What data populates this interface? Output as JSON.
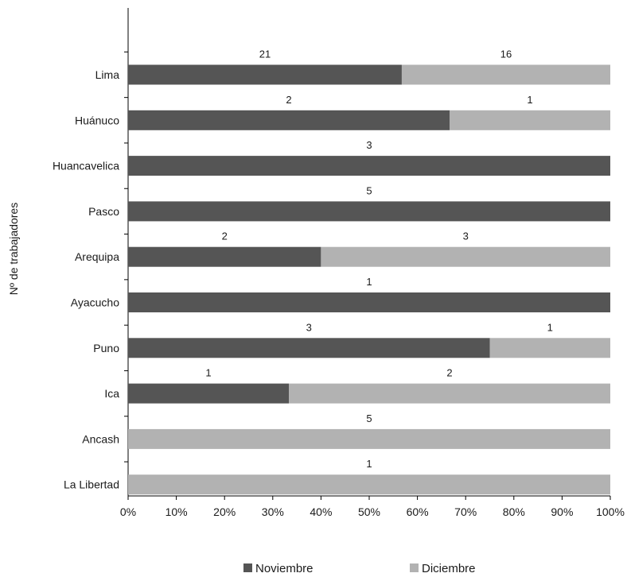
{
  "chart_data": {
    "type": "bar",
    "orientation": "horizontal",
    "stacked": "percent",
    "ylabel": "Nº de trabajadores",
    "xlabel": "",
    "xlim": [
      0,
      100
    ],
    "x_ticks": [
      "0%",
      "10%",
      "20%",
      "30%",
      "40%",
      "50%",
      "60%",
      "70%",
      "80%",
      "90%",
      "100%"
    ],
    "categories": [
      "Lima",
      "Huánuco",
      "Huancavelica",
      "Pasco",
      "Arequipa",
      "Ayacucho",
      "Puno",
      "Ica",
      "Ancash",
      "La Libertad"
    ],
    "series": [
      {
        "name": "Noviembre",
        "values": [
          21,
          2,
          3,
          5,
          2,
          1,
          3,
          1,
          0,
          0
        ],
        "color": "#555555"
      },
      {
        "name": "Diciembre",
        "values": [
          16,
          1,
          0,
          0,
          3,
          0,
          1,
          2,
          5,
          1
        ],
        "color": "#b2b2b2"
      }
    ],
    "grid": false,
    "legend_position": "bottom"
  }
}
